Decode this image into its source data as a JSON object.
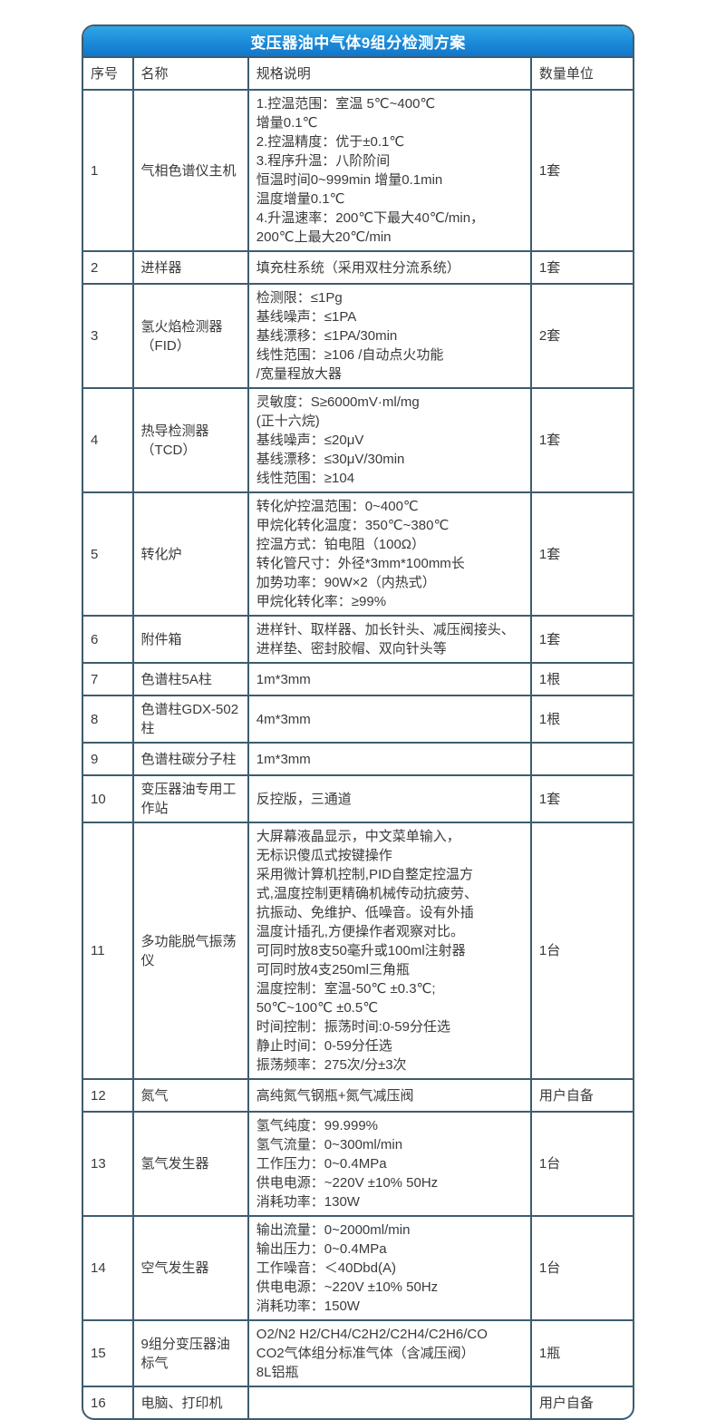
{
  "title": "变压器油中气体9组分检测方案",
  "columns": {
    "no": "序号",
    "name": "名称",
    "spec": "规格说明",
    "qty": "数量单位"
  },
  "colors": {
    "title_gradient_top": "#2fa7e7",
    "title_gradient_bottom": "#1176cb",
    "title_text": "#ffffff",
    "table_border": "#3e5c6f",
    "body_text": "#3a3a3a"
  },
  "rows": [
    {
      "no": "1",
      "name": "气相色谱仪主机",
      "spec": [
        "1.控温范围：室温 5℃~400℃",
        "增量0.1℃",
        "2.控温精度：优于±0.1℃",
        "3.程序升温：八阶阶间",
        "恒温时间0~999min 增量0.1min",
        "温度增量0.1℃",
        "4.升温速率：200℃下最大40℃/min，",
        "200℃上最大20℃/min"
      ],
      "qty": "1套"
    },
    {
      "no": "2",
      "name": "进样器",
      "spec": [
        "填充柱系统（采用双柱分流系统）"
      ],
      "qty": "1套"
    },
    {
      "no": "3",
      "name": "氢火焰检测器（FID）",
      "spec": [
        "检测限：≤1Pg",
        "基线噪声：≤1PA",
        "基线漂移：≤1PA/30min",
        "线性范围：≥106 /自动点火功能",
        "/宽量程放大器"
      ],
      "qty": "2套"
    },
    {
      "no": "4",
      "name": "热导检测器（TCD）",
      "spec": [
        "灵敏度：S≥6000mV·ml/mg",
        "(正十六烷)",
        "基线噪声：≤20μV",
        "基线漂移：≤30μV/30min",
        "线性范围：≥104"
      ],
      "qty": "1套"
    },
    {
      "no": "5",
      "name": "转化炉",
      "spec": [
        "转化炉控温范围：0~400℃",
        "甲烷化转化温度：350℃~380℃",
        "控温方式：铂电阻（100Ω）",
        "转化管尺寸：外径*3mm*100mm长",
        "加势功率：90W×2（内热式）",
        "甲烷化转化率：≥99%"
      ],
      "qty": "1套"
    },
    {
      "no": "6",
      "name": "附件箱",
      "spec": [
        "进样针、取样器、加长针头、减压阀接头、进样垫、密封胶帽、双向针头等"
      ],
      "qty": "1套"
    },
    {
      "no": "7",
      "name": "色谱柱5A柱",
      "spec": [
        "1m*3mm"
      ],
      "qty": "1根"
    },
    {
      "no": "8",
      "name": "色谱柱GDX-502柱",
      "spec": [
        "4m*3mm"
      ],
      "qty": "1根"
    },
    {
      "no": "9",
      "name": "色谱柱碳分子柱",
      "spec": [
        "1m*3mm"
      ],
      "qty": ""
    },
    {
      "no": "10",
      "name": "变压器油专用工作站",
      "spec": [
        "反控版，三通道"
      ],
      "qty": "1套"
    },
    {
      "no": "11",
      "name": "多功能脱气振荡仪",
      "spec": [
        "大屏幕液晶显示，中文菜单输入，",
        "无标识傻瓜式按键操作",
        "采用微计算机控制,PID自整定控温方",
        "式,温度控制更精确机械传动抗疲劳、",
        "抗振动、免维护、低噪音。设有外插",
        "温度计插孔,方便操作者观察对比。",
        "可同时放8支50毫升或100ml注射器",
        "可同时放4支250ml三角瓶",
        "温度控制：室温-50℃ ±0.3℃;",
        "50℃~100℃ ±0.5℃",
        "时间控制：振荡时间:0-59分任选",
        "静止时间：0-59分任选",
        "振荡频率：275次/分±3次"
      ],
      "qty": "1台"
    },
    {
      "no": "12",
      "name": "氮气",
      "spec": [
        "高纯氮气钢瓶+氮气减压阀"
      ],
      "qty": "用户自备"
    },
    {
      "no": "13",
      "name": "氢气发生器",
      "spec": [
        "氢气纯度：99.999%",
        "氢气流量：0~300ml/min",
        "工作压力：0~0.4MPa",
        "供电电源：~220V ±10% 50Hz",
        "消耗功率：130W"
      ],
      "qty": "1台"
    },
    {
      "no": "14",
      "name": "空气发生器",
      "spec": [
        "输出流量：0~2000ml/min",
        "输出压力：0~0.4MPa",
        "工作噪音：＜40Dbd(A)",
        "供电电源：~220V ±10% 50Hz",
        "消耗功率：150W"
      ],
      "qty": "1台"
    },
    {
      "no": "15",
      "name": "9组分变压器油标气",
      "spec": [
        "O2/N2 H2/CH4/C2H2/C2H4/C2H6/CO",
        "CO2气体组分标准气体（含减压阀）",
        "8L铝瓶"
      ],
      "qty": "1瓶"
    },
    {
      "no": "16",
      "name": "电脑、打印机",
      "spec": [],
      "qty": "用户自备"
    }
  ]
}
